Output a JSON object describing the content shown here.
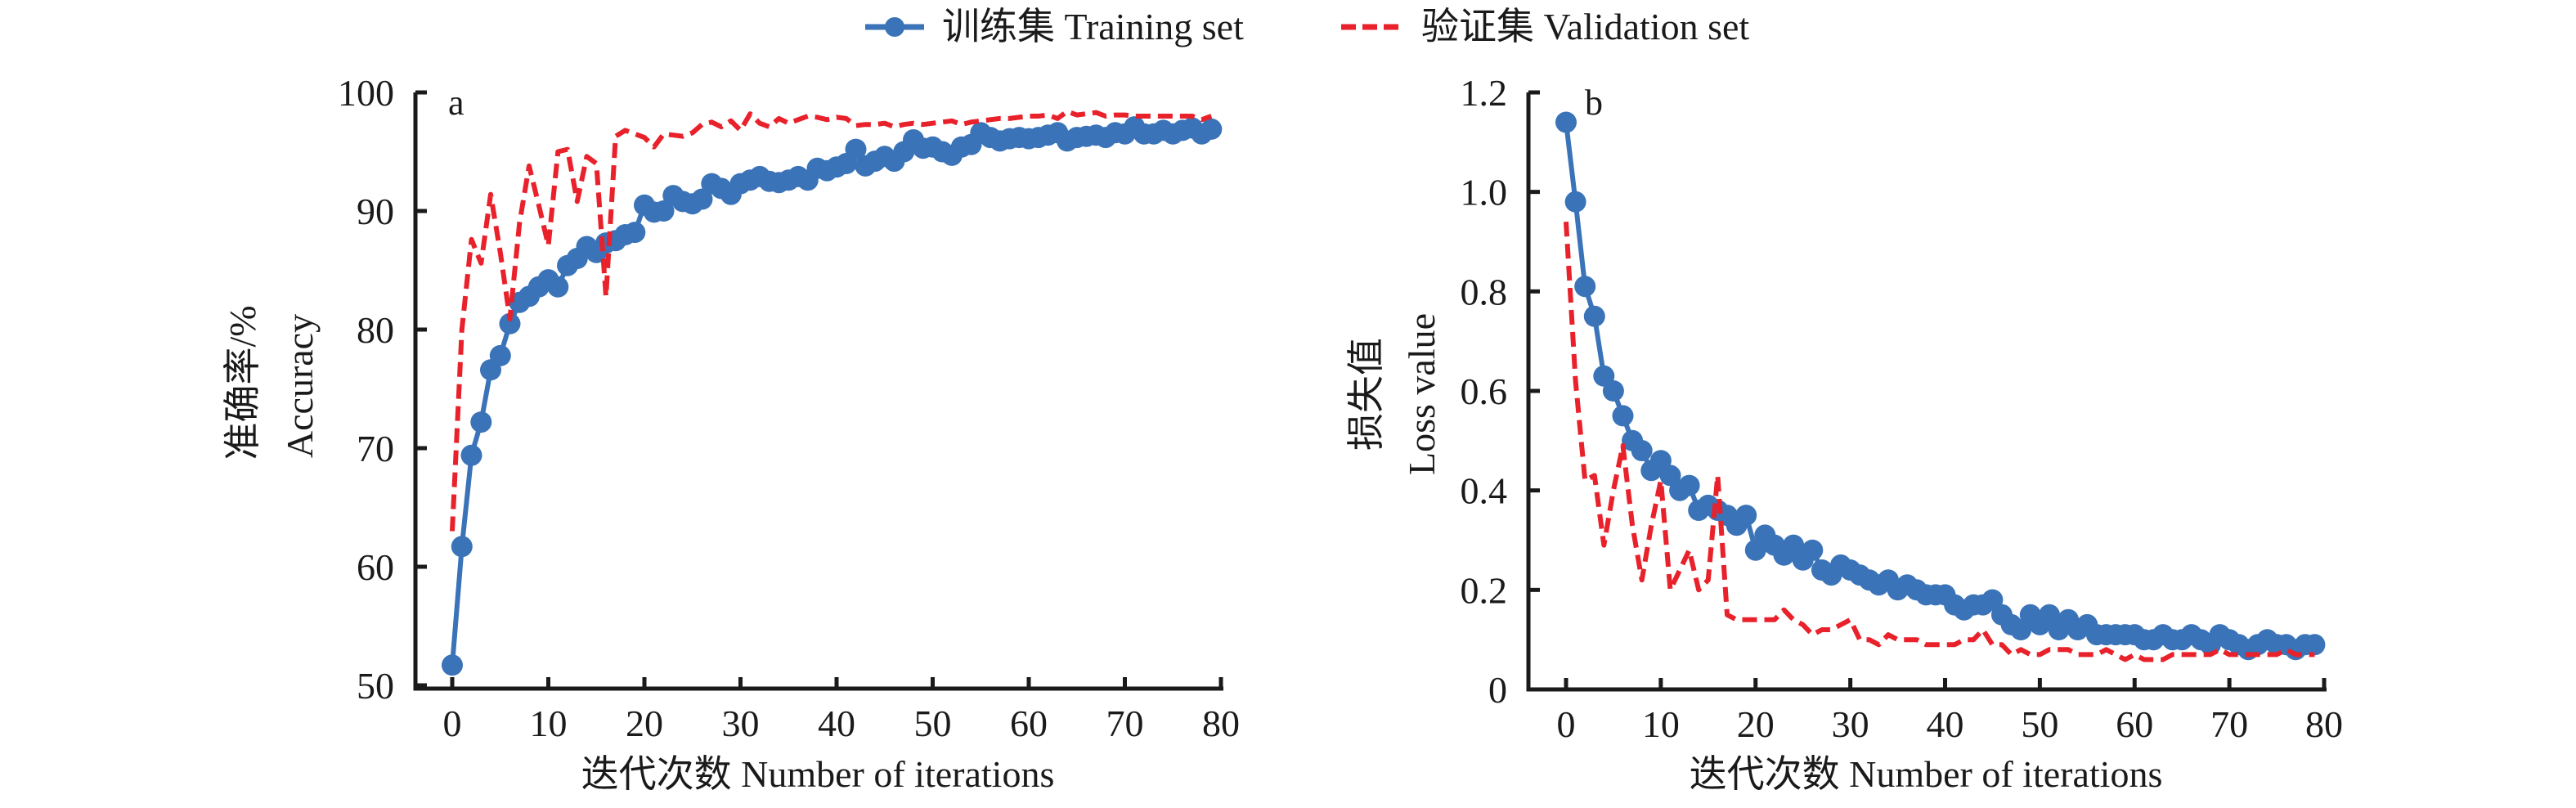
{
  "legend": {
    "training": "训练集 Training set",
    "validation": "验证集 Validation set"
  },
  "colors": {
    "training": "#3a73b8",
    "validation": "#e8212b"
  },
  "chart_data": [
    {
      "type": "line",
      "panel": "a",
      "title": "",
      "xlabel": "迭代次数 Number of iterations",
      "ylabel_cn": "准确率/%",
      "ylabel_en": "Accuracy",
      "xlim": [
        0,
        80
      ],
      "ylim": [
        50,
        100
      ],
      "xticks": [
        0,
        10,
        20,
        30,
        40,
        50,
        60,
        70,
        80
      ],
      "yticks": [
        50,
        60,
        70,
        80,
        90,
        100
      ],
      "grid": false,
      "legend_position": "top-center",
      "x": [
        0,
        1,
        2,
        3,
        4,
        5,
        6,
        7,
        8,
        9,
        10,
        11,
        12,
        13,
        14,
        15,
        16,
        17,
        18,
        19,
        20,
        21,
        22,
        23,
        24,
        25,
        26,
        27,
        28,
        29,
        30,
        31,
        32,
        33,
        34,
        35,
        36,
        37,
        38,
        39,
        40,
        41,
        42,
        43,
        44,
        45,
        46,
        47,
        48,
        49,
        50,
        51,
        52,
        53,
        54,
        55,
        56,
        57,
        58,
        59,
        60,
        61,
        62,
        63,
        64,
        65,
        66,
        67,
        68,
        69,
        70,
        71,
        72,
        73,
        74,
        75,
        76,
        77,
        78,
        79
      ],
      "series": [
        {
          "name": "训练集 Training set",
          "style": "solid-marker",
          "values": [
            51.7,
            61.7,
            69.4,
            72.2,
            76.6,
            77.8,
            80.5,
            82.3,
            82.8,
            83.6,
            84.2,
            83.6,
            85.4,
            86.0,
            87.0,
            86.5,
            87.3,
            87.5,
            88.0,
            88.2,
            90.5,
            89.9,
            90.0,
            91.3,
            90.8,
            90.6,
            91.0,
            92.3,
            91.9,
            91.4,
            92.3,
            92.6,
            92.9,
            92.5,
            92.4,
            92.6,
            92.9,
            92.6,
            93.6,
            93.4,
            93.7,
            94.0,
            95.2,
            93.8,
            94.2,
            94.6,
            94.2,
            95.0,
            96.0,
            95.3,
            95.4,
            95.0,
            94.7,
            95.4,
            95.6,
            96.6,
            96.2,
            95.9,
            96.1,
            96.2,
            96.1,
            96.2,
            96.4,
            96.6,
            95.9,
            96.2,
            96.3,
            96.4,
            96.2,
            96.6,
            96.5,
            97.1,
            96.5,
            96.5,
            96.8,
            96.5,
            96.8,
            97.0,
            96.5,
            96.9
          ]
        },
        {
          "name": "验证集 Validation set",
          "style": "dashed",
          "values": [
            63.0,
            80.0,
            87.6,
            85.6,
            91.4,
            86.5,
            80.9,
            89.0,
            93.8,
            90.5,
            87.1,
            95.0,
            95.2,
            90.8,
            94.6,
            94.0,
            82.8,
            96.3,
            96.8,
            96.5,
            96.2,
            95.4,
            96.5,
            96.4,
            96.3,
            96.6,
            97.3,
            97.5,
            97.1,
            97.6,
            96.8,
            98.2,
            97.4,
            97.1,
            97.8,
            97.4,
            97.7,
            98.0,
            97.9,
            97.7,
            97.9,
            97.8,
            97.2,
            97.3,
            97.3,
            97.4,
            97.1,
            97.3,
            97.4,
            97.3,
            97.4,
            97.5,
            97.6,
            97.3,
            97.5,
            97.6,
            97.7,
            97.8,
            97.8,
            97.9,
            98.0,
            98.0,
            98.1,
            97.8,
            98.4,
            98.1,
            98.2,
            98.3,
            98.0,
            98.1,
            98.1,
            98.0,
            98.0,
            98.0,
            98.0,
            98.0,
            98.0,
            98.0,
            97.7,
            98.0
          ]
        }
      ]
    },
    {
      "type": "line",
      "panel": "b",
      "title": "",
      "xlabel": "迭代次数 Number of iterations",
      "ylabel_cn": "损失值",
      "ylabel_en": "Loss value",
      "xlim": [
        0,
        80
      ],
      "ylim": [
        0,
        1.2
      ],
      "xticks": [
        0,
        10,
        20,
        30,
        40,
        50,
        60,
        70,
        80
      ],
      "yticks": [
        0,
        0.2,
        0.4,
        0.6,
        0.8,
        1.0,
        1.2
      ],
      "ytick_labels": [
        "0",
        "0.2",
        "0.4",
        "0.6",
        "0.8",
        "1.0",
        "1.2"
      ],
      "grid": false,
      "legend_position": "top-center",
      "x": [
        0,
        1,
        2,
        3,
        4,
        5,
        6,
        7,
        8,
        9,
        10,
        11,
        12,
        13,
        14,
        15,
        16,
        17,
        18,
        19,
        20,
        21,
        22,
        23,
        24,
        25,
        26,
        27,
        28,
        29,
        30,
        31,
        32,
        33,
        34,
        35,
        36,
        37,
        38,
        39,
        40,
        41,
        42,
        43,
        44,
        45,
        46,
        47,
        48,
        49,
        50,
        51,
        52,
        53,
        54,
        55,
        56,
        57,
        58,
        59,
        60,
        61,
        62,
        63,
        64,
        65,
        66,
        67,
        68,
        69,
        70,
        71,
        72,
        73,
        74,
        75,
        76,
        77,
        78,
        79
      ],
      "series": [
        {
          "name": "训练集 Training set",
          "style": "solid-marker",
          "values": [
            1.14,
            0.98,
            0.81,
            0.75,
            0.63,
            0.6,
            0.55,
            0.5,
            0.48,
            0.44,
            0.46,
            0.43,
            0.4,
            0.41,
            0.36,
            0.37,
            0.36,
            0.35,
            0.33,
            0.35,
            0.28,
            0.31,
            0.29,
            0.27,
            0.29,
            0.26,
            0.28,
            0.24,
            0.23,
            0.25,
            0.24,
            0.23,
            0.22,
            0.21,
            0.22,
            0.2,
            0.21,
            0.2,
            0.19,
            0.19,
            0.19,
            0.17,
            0.16,
            0.17,
            0.17,
            0.18,
            0.15,
            0.13,
            0.12,
            0.15,
            0.13,
            0.15,
            0.12,
            0.14,
            0.12,
            0.13,
            0.11,
            0.11,
            0.11,
            0.11,
            0.11,
            0.1,
            0.1,
            0.11,
            0.1,
            0.1,
            0.11,
            0.1,
            0.09,
            0.11,
            0.1,
            0.09,
            0.08,
            0.09,
            0.1,
            0.09,
            0.09,
            0.08,
            0.09,
            0.09
          ]
        },
        {
          "name": "验证集 Validation set",
          "style": "dashed",
          "values": [
            0.94,
            0.62,
            0.42,
            0.43,
            0.29,
            0.4,
            0.49,
            0.33,
            0.22,
            0.33,
            0.42,
            0.2,
            0.24,
            0.28,
            0.2,
            0.22,
            0.43,
            0.15,
            0.14,
            0.14,
            0.14,
            0.14,
            0.14,
            0.16,
            0.14,
            0.13,
            0.11,
            0.12,
            0.12,
            0.13,
            0.14,
            0.1,
            0.1,
            0.09,
            0.11,
            0.1,
            0.1,
            0.1,
            0.09,
            0.09,
            0.09,
            0.09,
            0.1,
            0.1,
            0.12,
            0.09,
            0.09,
            0.07,
            0.08,
            0.07,
            0.07,
            0.08,
            0.08,
            0.08,
            0.07,
            0.07,
            0.07,
            0.08,
            0.07,
            0.06,
            0.07,
            0.06,
            0.06,
            0.06,
            0.07,
            0.07,
            0.07,
            0.07,
            0.07,
            0.08,
            0.07,
            0.07,
            0.07,
            0.07,
            0.07,
            0.07,
            0.08,
            0.07,
            0.07,
            0.07
          ]
        }
      ]
    }
  ]
}
